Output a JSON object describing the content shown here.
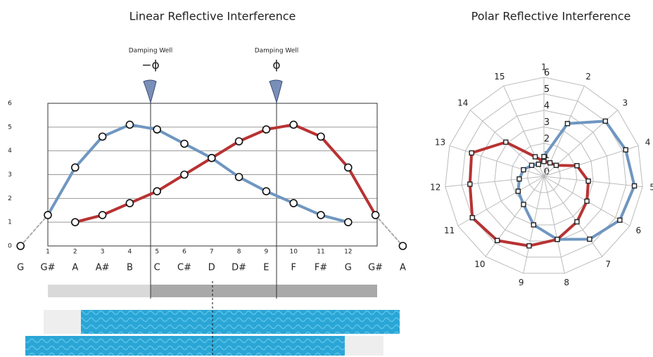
{
  "chart_data": [
    {
      "type": "line",
      "title": "Linear Reflective Interference",
      "categories": [
        "G",
        "G#",
        "A",
        "A#",
        "B",
        "C",
        "C#",
        "D",
        "D#",
        "E",
        "F",
        "F#",
        "G",
        "G#",
        "A"
      ],
      "category_numbers": [
        null,
        1,
        2,
        3,
        4,
        5,
        6,
        7,
        8,
        9,
        10,
        11,
        12,
        null,
        null
      ],
      "series": [
        {
          "color": "#6f96c0",
          "values": [
            0,
            1.3,
            3.3,
            4.6,
            5.1,
            4.9,
            4.3,
            3.7,
            2.9,
            2.3,
            1.8,
            1.3,
            1.0,
            null,
            null
          ]
        },
        {
          "color": "#b83232",
          "values": [
            null,
            null,
            1.0,
            1.3,
            1.8,
            2.3,
            3.0,
            3.7,
            4.4,
            4.9,
            5.1,
            4.6,
            3.3,
            1.3,
            0
          ]
        }
      ],
      "ylim": [
        0,
        6
      ],
      "yticks": [
        0,
        1,
        2,
        3,
        4,
        5,
        6
      ],
      "grid": true,
      "annotations": [
        {
          "text": "Damping Well",
          "symbol": "−ϕ"
        },
        {
          "text": "Damping Well",
          "symbol": "ϕ"
        }
      ]
    },
    {
      "type": "radar",
      "title": "Polar Reflective Interference",
      "categories": [
        "1",
        "2",
        "3",
        "4",
        "5",
        "6",
        "7",
        "8",
        "9",
        "10",
        "11",
        "12",
        "13",
        "14",
        "15"
      ],
      "series": [
        {
          "color": "#6f96c0",
          "values": [
            1.2,
            3.5,
            5.0,
            5.2,
            5.5,
            5.3,
            4.7,
            3.9,
            3.0,
            2.1,
            1.8,
            1.5,
            1.3,
            1.0,
            0.8
          ]
        },
        {
          "color": "#b83232",
          "values": [
            0.9,
            0.9,
            1.0,
            2.1,
            2.7,
            3.0,
            3.4,
            3.9,
            4.3,
            4.8,
            5.0,
            4.5,
            4.6,
            3.1,
            1.3
          ]
        }
      ],
      "rlim": [
        0,
        6
      ],
      "rticks": [
        0,
        1,
        2,
        3,
        4,
        5,
        6
      ],
      "grid": true
    }
  ]
}
